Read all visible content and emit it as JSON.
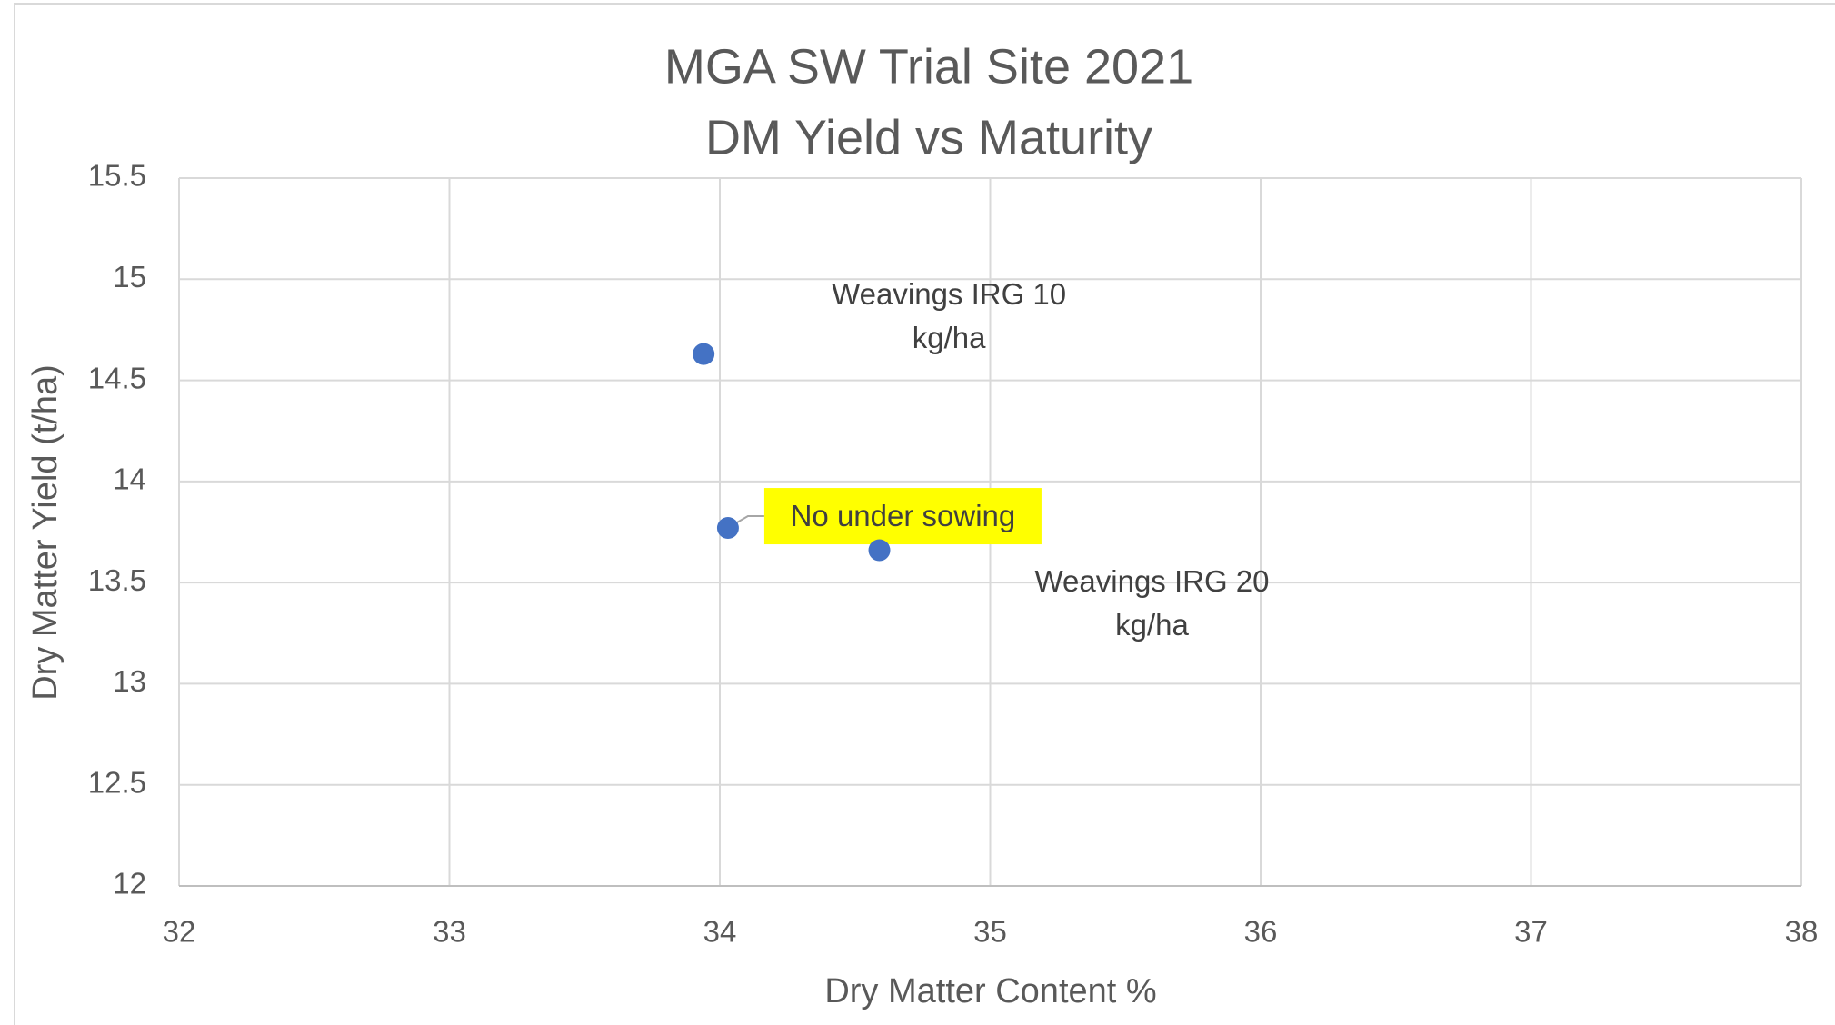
{
  "chart_data": {
    "type": "scatter",
    "title": [
      "MGA SW Trial Site 2021",
      "DM Yield vs Maturity"
    ],
    "x_label": "Dry Matter Content %",
    "y_label": "Dry Matter Yield (t/ha)",
    "series": [
      {
        "color": "#4472c4",
        "x": [
          33.94,
          34.03,
          34.59
        ],
        "values": [
          14.63,
          13.77,
          13.66
        ],
        "labels": [
          "Weavings IRG 10 kg/ha",
          "No under sowing",
          "Weavings IRG 20 kg/ha"
        ]
      }
    ],
    "xlim": [
      32,
      38
    ],
    "xticks": [
      32,
      33,
      34,
      35,
      36,
      37,
      38
    ],
    "ylim": [
      12,
      15.5
    ],
    "yticks": [
      12,
      {
        "value": 12.5,
        "label": "12.5"
      },
      13,
      {
        "value": 13.5,
        "label": "13.5"
      },
      14,
      {
        "value": 14.5,
        "label": "14.5"
      },
      15,
      {
        "value": 15.5,
        "label": "15.5"
      }
    ],
    "grid": true
  }
}
